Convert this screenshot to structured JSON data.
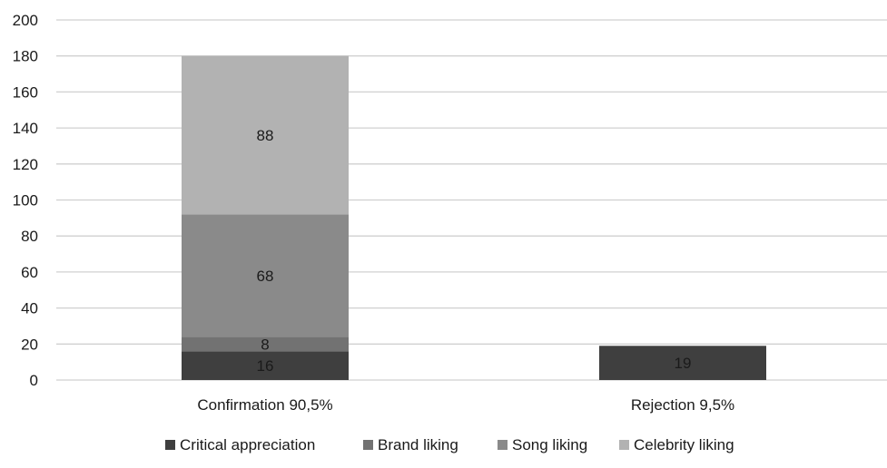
{
  "chart_data": {
    "type": "bar",
    "stacked": true,
    "title": "",
    "xlabel": "",
    "ylabel": "",
    "categories": [
      "Confirmation 90,5%",
      "Rejection 9,5%"
    ],
    "series": [
      {
        "name": "Critical appreciation",
        "values": [
          16,
          19
        ],
        "color": "#3f3f3f"
      },
      {
        "name": "Brand liking",
        "values": [
          8,
          0
        ],
        "color": "#727272"
      },
      {
        "name": "Song liking",
        "values": [
          68,
          0
        ],
        "color": "#8a8a8a"
      },
      {
        "name": "Celebrity liking",
        "values": [
          88,
          0
        ],
        "color": "#b2b2b2"
      }
    ],
    "data_labels": [
      [
        "16",
        "19"
      ],
      [
        "8",
        ""
      ],
      [
        "68",
        ""
      ],
      [
        "88",
        ""
      ]
    ],
    "ylim": [
      0,
      200
    ],
    "yticks": [
      0,
      20,
      40,
      60,
      80,
      100,
      120,
      140,
      160,
      180,
      200
    ],
    "grid": true,
    "legend_position": "bottom",
    "colors": {
      "gridline": "#d0d0d0",
      "axis_text": "#1a1a1a",
      "label_text": "#1a1a1a"
    }
  }
}
